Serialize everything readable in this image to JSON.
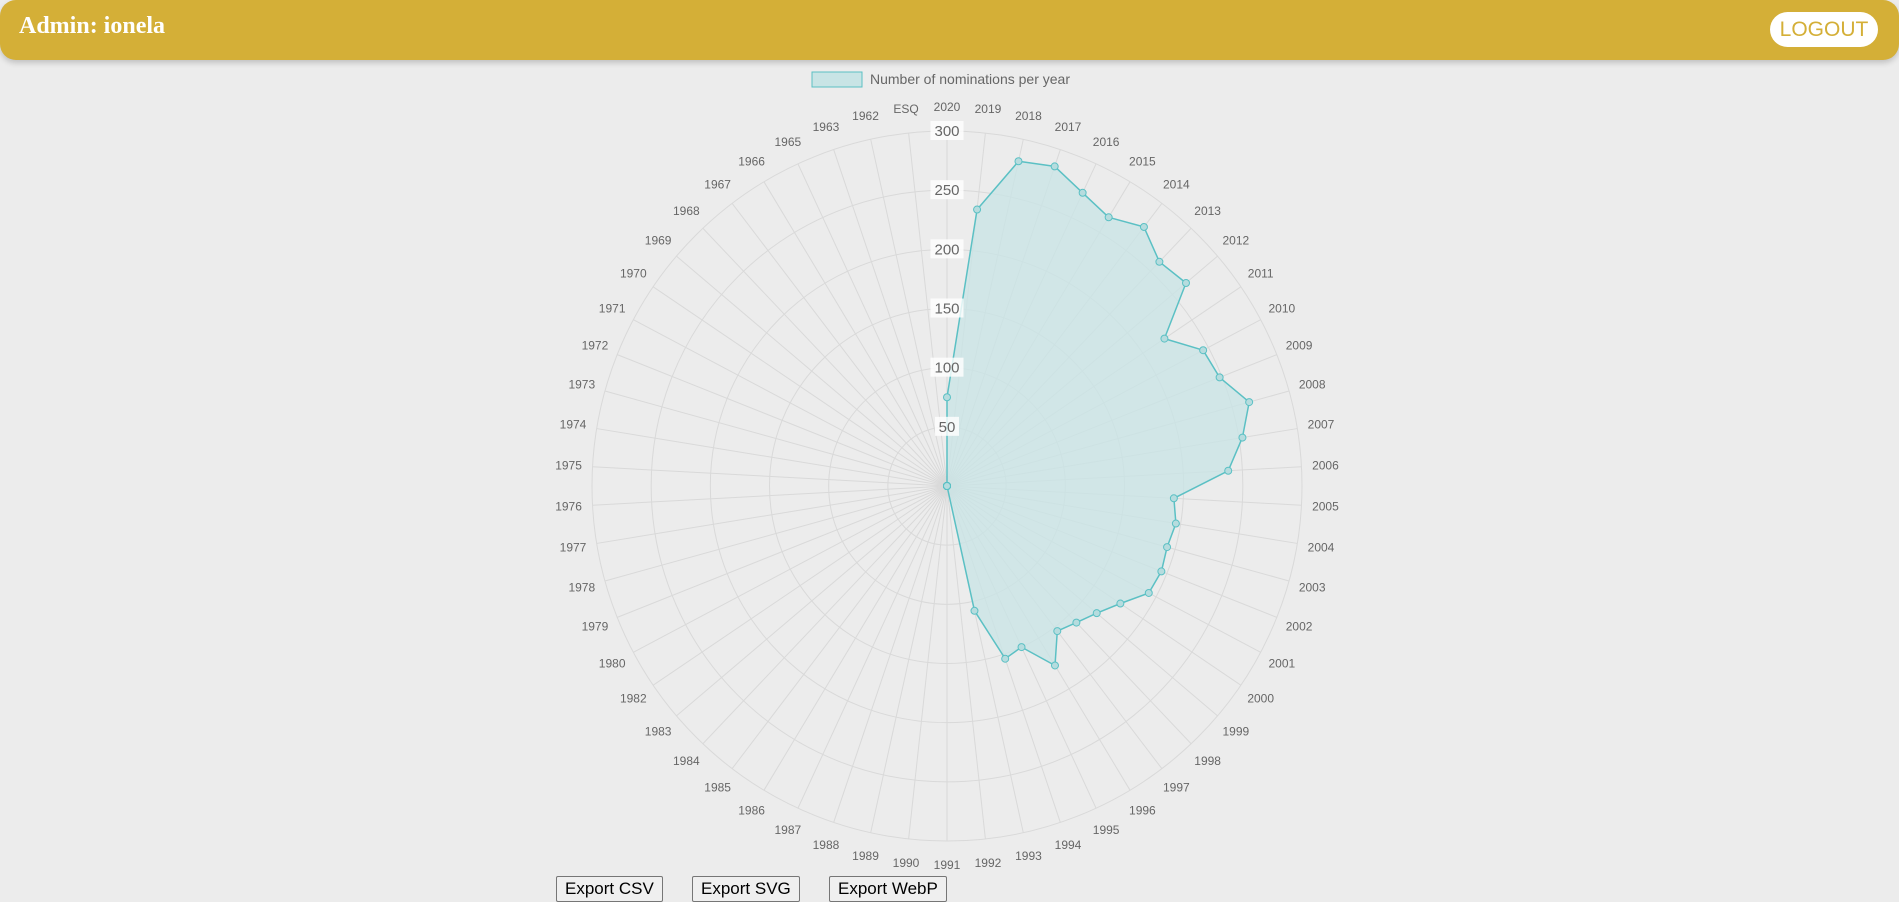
{
  "header": {
    "title": "Admin: ionela",
    "logout_label": "LOGOUT"
  },
  "colors": {
    "accent": "#d4af37",
    "series_stroke": "#5bc0c4",
    "series_fill": "#c8e4e5"
  },
  "chart_data": {
    "type": "radar",
    "legend": "Number of nominations per year",
    "legend_position": "top",
    "r_ticks": [
      50,
      100,
      150,
      200,
      250,
      300
    ],
    "r_range": [
      0,
      300
    ],
    "grid": true,
    "categories": [
      "2020",
      "2019",
      "2018",
      "2017",
      "2016",
      "2015",
      "2014",
      "2013",
      "2012",
      "2011",
      "2010",
      "2009",
      "2008",
      "2007",
      "2006",
      "2005",
      "2004",
      "2003",
      "2002",
      "2001",
      "2000",
      "1999",
      "1998",
      "1997",
      "1996",
      "1995",
      "1994",
      "1993",
      "1992",
      "1991",
      "1990",
      "1989",
      "1988",
      "1987",
      "1986",
      "1985",
      "1984",
      "1983",
      "1982",
      "1980",
      "1979",
      "1978",
      "1977",
      "1976",
      "1975",
      "1974",
      "1973",
      "1972",
      "1971",
      "1970",
      "1969",
      "1968",
      "1967",
      "1966",
      "1965",
      "1963",
      "1962",
      "ESQ"
    ],
    "values": [
      75,
      235,
      281,
      285,
      273,
      265,
      275,
      261,
      265,
      222,
      245,
      248,
      265,
      253,
      238,
      192,
      196,
      193,
      195,
      193,
      177,
      166,
      159,
      154,
      177,
      150,
      154,
      108,
      0,
      0,
      0,
      0,
      0,
      0,
      0,
      0,
      0,
      0,
      0,
      0,
      0,
      0,
      0,
      0,
      0,
      0,
      0,
      0,
      0,
      0,
      0,
      0,
      0,
      0,
      0,
      0,
      0,
      0
    ]
  },
  "export": {
    "csv": "Export CSV",
    "svg": "Export SVG",
    "webp": "Export WebP"
  }
}
